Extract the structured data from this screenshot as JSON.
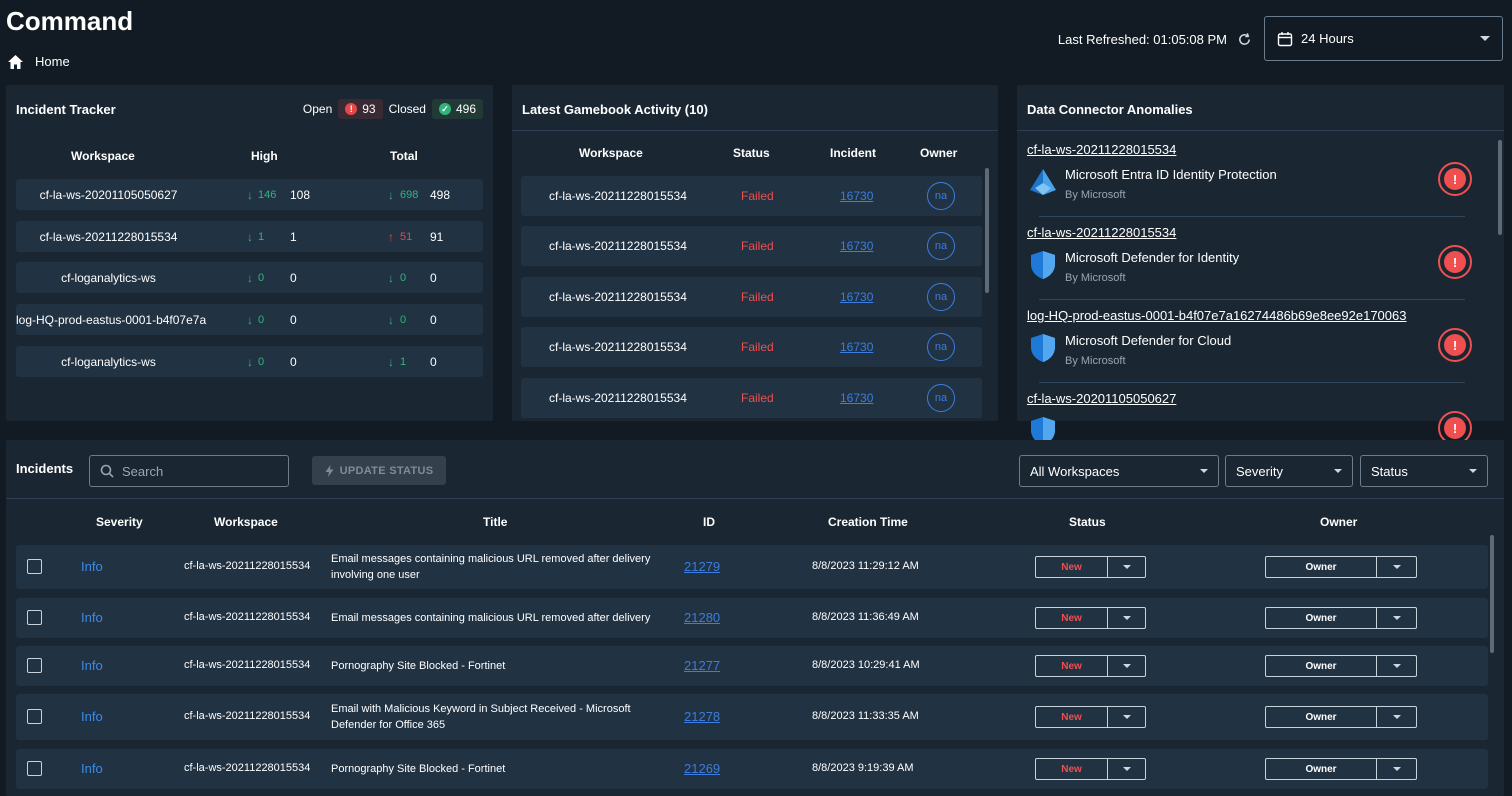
{
  "header": {
    "title": "Command",
    "breadcrumb": "Home",
    "last_refreshed_label": "Last Refreshed: 01:05:08 PM",
    "time_range": "24 Hours"
  },
  "incident_tracker": {
    "title": "Incident Tracker",
    "open_label": "Open",
    "open_count": "93",
    "closed_label": "Closed",
    "closed_count": "496",
    "columns": [
      "Workspace",
      "High",
      "Total"
    ],
    "rows": [
      {
        "workspace": "cf-la-ws-20201105050627",
        "high_change": "146",
        "high_dir": "down",
        "high": "108",
        "total_change": "698",
        "total_dir": "down",
        "total": "498"
      },
      {
        "workspace": "cf-la-ws-20211228015534",
        "high_change": "1",
        "high_dir": "down",
        "high": "1",
        "total_change": "51",
        "total_dir": "up",
        "total": "91"
      },
      {
        "workspace": "cf-loganalytics-ws",
        "high_change": "0",
        "high_dir": "down",
        "high": "0",
        "total_change": "0",
        "total_dir": "down",
        "total": "0"
      },
      {
        "workspace": "log-HQ-prod-eastus-0001-b4f07e7a",
        "high_change": "0",
        "high_dir": "down",
        "high": "0",
        "total_change": "0",
        "total_dir": "down",
        "total": "0"
      },
      {
        "workspace": "cf-loganalytics-ws",
        "high_change": "0",
        "high_dir": "down",
        "high": "0",
        "total_change": "1",
        "total_dir": "down",
        "total": "0"
      }
    ]
  },
  "gamebook": {
    "title": "Latest Gamebook Activity (10)",
    "columns": [
      "Workspace",
      "Status",
      "Incident",
      "Owner"
    ],
    "rows": [
      {
        "workspace": "cf-la-ws-20211228015534",
        "status": "Failed",
        "incident": "16730",
        "owner": "na"
      },
      {
        "workspace": "cf-la-ws-20211228015534",
        "status": "Failed",
        "incident": "16730",
        "owner": "na"
      },
      {
        "workspace": "cf-la-ws-20211228015534",
        "status": "Failed",
        "incident": "16730",
        "owner": "na"
      },
      {
        "workspace": "cf-la-ws-20211228015534",
        "status": "Failed",
        "incident": "16730",
        "owner": "na"
      },
      {
        "workspace": "cf-la-ws-20211228015534",
        "status": "Failed",
        "incident": "16730",
        "owner": "na"
      }
    ]
  },
  "anomalies": {
    "title": "Data Connector Anomalies",
    "items": [
      {
        "workspace": "cf-la-ws-20211228015534",
        "connector": "Microsoft Entra ID Identity Protection",
        "by": "By Microsoft",
        "icon": "entra-icon"
      },
      {
        "workspace": "cf-la-ws-20211228015534",
        "connector": "Microsoft Defender for Identity",
        "by": "By Microsoft",
        "icon": "shield-icon"
      },
      {
        "workspace": "log-HQ-prod-eastus-0001-b4f07e7a16274486b69e8ee92e170063",
        "connector": "Microsoft Defender for Cloud",
        "by": "By Microsoft",
        "icon": "shield-icon"
      },
      {
        "workspace": "cf-la-ws-20201105050627",
        "connector": "",
        "by": "",
        "icon": "shield-icon"
      }
    ]
  },
  "incidents": {
    "title": "Incidents",
    "search_placeholder": "Search",
    "update_status_label": "UPDATE STATUS",
    "filters": {
      "workspaces": "All Workspaces",
      "severity": "Severity",
      "status": "Status"
    },
    "columns": [
      "Severity",
      "Workspace",
      "Title",
      "ID",
      "Creation Time",
      "Status",
      "Owner"
    ],
    "rows": [
      {
        "severity": "Info",
        "workspace": "cf-la-ws-20211228015534",
        "title_line1": "Email messages containing malicious URL removed after delivery",
        "title_line2": "involving one user",
        "id": "21279",
        "created": "8/8/2023 11:29:12 AM",
        "status": "New",
        "owner": "Owner"
      },
      {
        "severity": "Info",
        "workspace": "cf-la-ws-20211228015534",
        "title_line1": "Email messages containing malicious URL removed after delivery",
        "title_line2": "",
        "id": "21280",
        "created": "8/8/2023 11:36:49 AM",
        "status": "New",
        "owner": "Owner"
      },
      {
        "severity": "Info",
        "workspace": "cf-la-ws-20211228015534",
        "title_line1": "Pornography Site Blocked - Fortinet",
        "title_line2": "",
        "id": "21277",
        "created": "8/8/2023 10:29:41 AM",
        "status": "New",
        "owner": "Owner"
      },
      {
        "severity": "Info",
        "workspace": "cf-la-ws-20211228015534",
        "title_line1": "Email with Malicious Keyword in Subject Received - Microsoft",
        "title_line2": "Defender for Office 365",
        "id": "21278",
        "created": "8/8/2023 11:33:35 AM",
        "status": "New",
        "owner": "Owner"
      },
      {
        "severity": "Info",
        "workspace": "cf-la-ws-20211228015534",
        "title_line1": "Pornography Site Blocked - Fortinet",
        "title_line2": "",
        "id": "21269",
        "created": "8/8/2023 9:19:39 AM",
        "status": "New",
        "owner": "Owner"
      }
    ]
  }
}
